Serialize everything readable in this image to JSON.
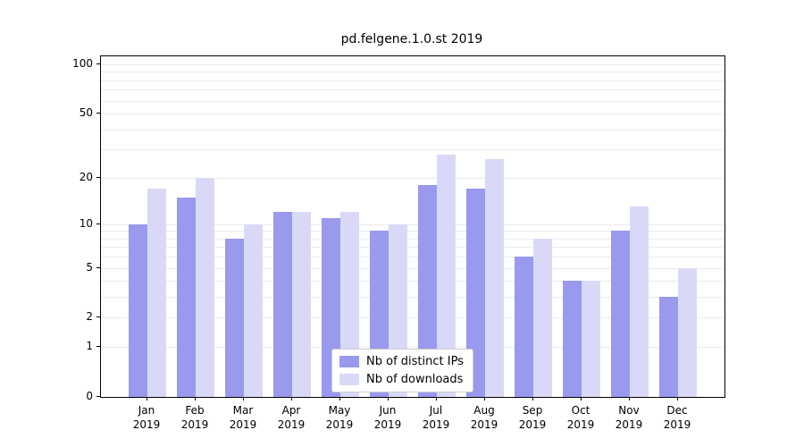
{
  "title": "pd.felgene.1.0.st 2019",
  "colors": {
    "ips": "#9999ee",
    "downloads": "#d9d9f7",
    "grid": "#ebebeb",
    "axis": "#000000",
    "legend_border": "#cccccc",
    "background": "#ffffff"
  },
  "legend": {
    "items": [
      {
        "label": "Nb of distinct IPs",
        "series": "ips"
      },
      {
        "label": "Nb of downloads",
        "series": "downloads"
      }
    ]
  },
  "chart_data": {
    "type": "bar",
    "title": "pd.felgene.1.0.st 2019",
    "year": "2019",
    "categories": [
      "Jan",
      "Feb",
      "Mar",
      "Apr",
      "May",
      "Jun",
      "Jul",
      "Aug",
      "Sep",
      "Oct",
      "Nov",
      "Dec"
    ],
    "series": [
      {
        "name": "Nb of distinct IPs",
        "color_key": "ips",
        "values": [
          10,
          15,
          8,
          12,
          11,
          9,
          18,
          17,
          6,
          4,
          9,
          3
        ]
      },
      {
        "name": "Nb of downloads",
        "color_key": "downloads",
        "values": [
          17,
          20,
          10,
          12,
          12,
          10,
          28,
          26,
          8,
          4,
          13,
          5
        ]
      }
    ],
    "xlabel": "",
    "ylabel": "",
    "y_scale": "log1p",
    "y_ticks": [
      100,
      50,
      20,
      10,
      5,
      2,
      1,
      0
    ],
    "grid_values": [
      1,
      2,
      3,
      4,
      5,
      6,
      7,
      8,
      9,
      10,
      20,
      30,
      40,
      50,
      60,
      70,
      80,
      90,
      100
    ],
    "ylim": [
      0,
      110
    ],
    "grid": "on",
    "legend_position": "lower center inside"
  }
}
